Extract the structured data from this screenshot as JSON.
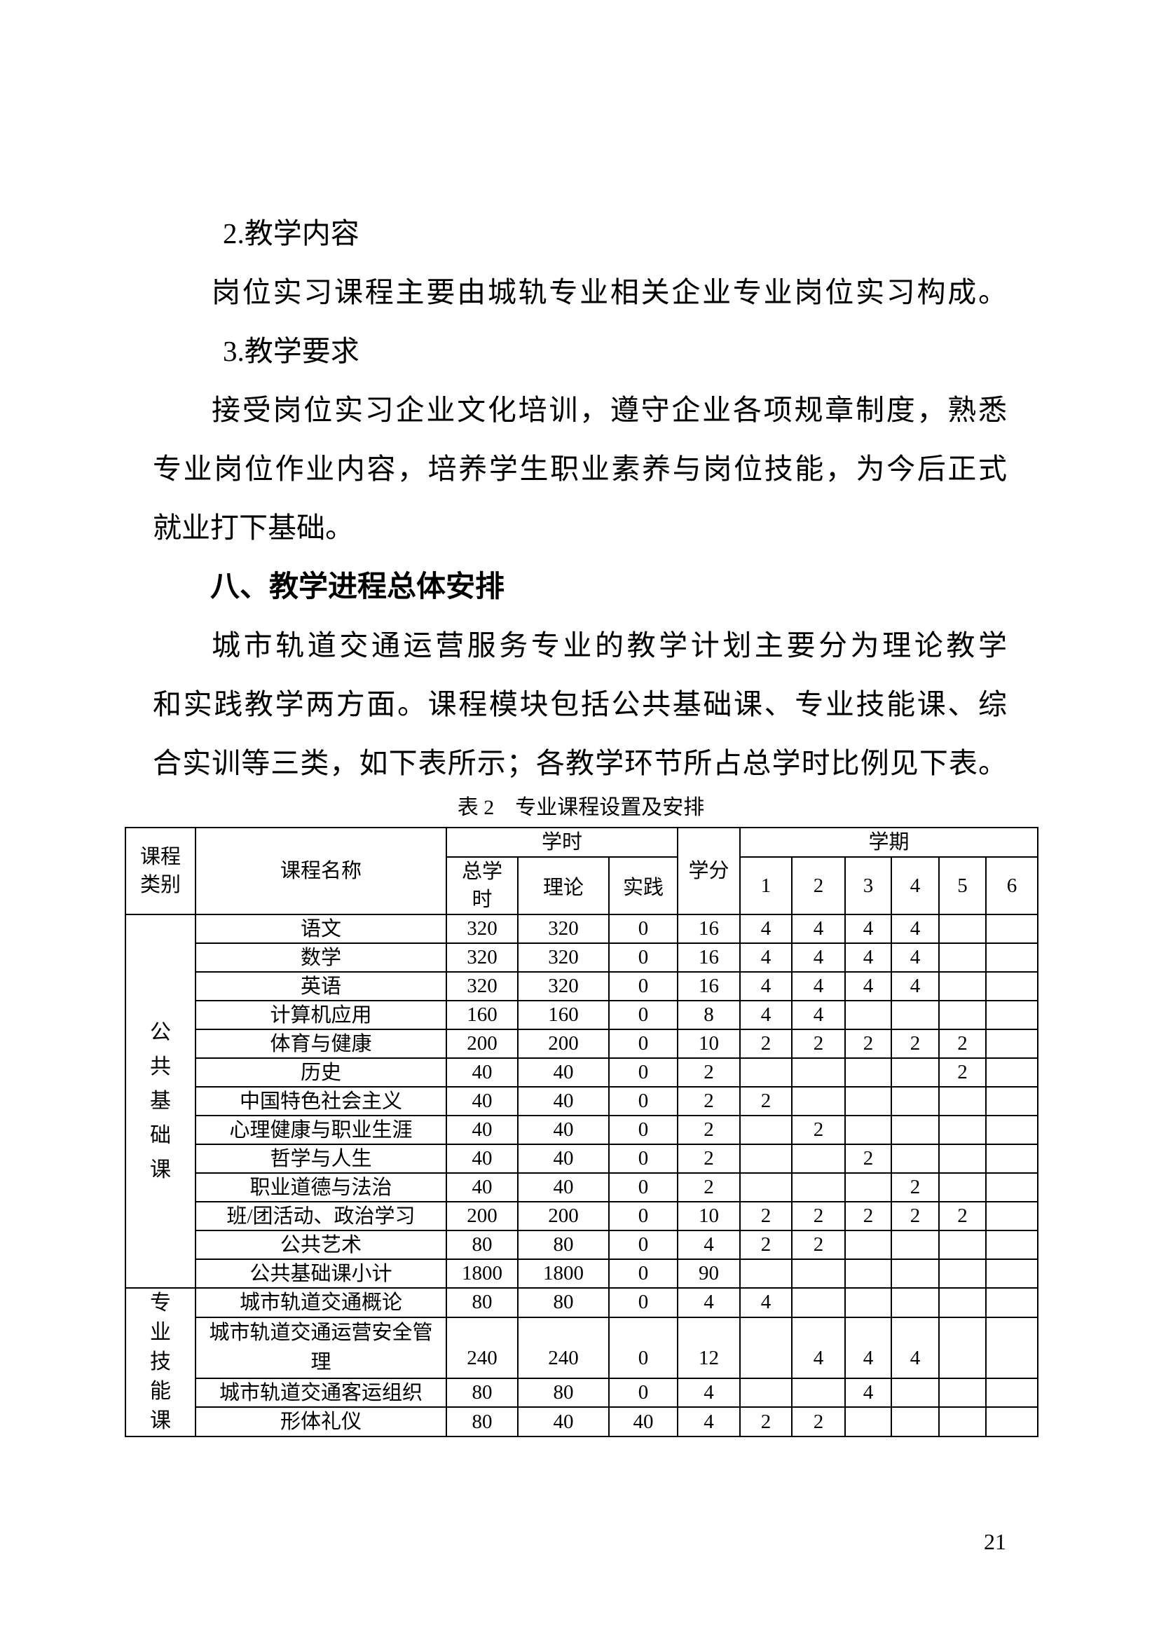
{
  "content": {
    "lines": [
      {
        "text": "2.教学内容"
      },
      {
        "text": "岗位实习课程主要由城轨专业相关企业专业岗位实习构成。"
      },
      {
        "text": "3.教学要求"
      },
      {
        "text": "接受岗位实习企业文化培训，遵守企业各项规章制度，熟悉"
      },
      {
        "text": "专业岗位作业内容，培养学生职业素养与岗位技能，为今后正式"
      },
      {
        "text": "就业打下基础。"
      },
      {
        "text": "八、教学进程总体安排"
      },
      {
        "text": "城市轨道交通运营服务专业的教学计划主要分为理论教学"
      },
      {
        "text": "和实践教学两方面。课程模块包括公共基础课、专业技能课、综"
      },
      {
        "text": "合实训等三类，如下表所示；各教学环节所占总学时比例见下表。"
      }
    ]
  },
  "table": {
    "caption": "表 2　专业课程设置及安排",
    "headers": {
      "category": "课程类别",
      "course_name": "课程名称",
      "hours_group": "学时",
      "total_hours": "总学时",
      "theory": "理论",
      "practice": "实践",
      "credits": "学分",
      "semester_group": "学期",
      "semesters": [
        "1",
        "2",
        "3",
        "4",
        "5",
        "6"
      ]
    },
    "categories": [
      {
        "label": "公共基础课",
        "rowspan": 13,
        "continues": false
      },
      {
        "label": "专业技能课",
        "rowspan": 4,
        "continues": true
      }
    ],
    "rows": [
      {
        "name": "语文",
        "total": "320",
        "theory": "320",
        "practice": "0",
        "credits": "16",
        "semesters": [
          "4",
          "4",
          "4",
          "4",
          "",
          ""
        ]
      },
      {
        "name": "数学",
        "total": "320",
        "theory": "320",
        "practice": "0",
        "credits": "16",
        "semesters": [
          "4",
          "4",
          "4",
          "4",
          "",
          ""
        ]
      },
      {
        "name": "英语",
        "total": "320",
        "theory": "320",
        "practice": "0",
        "credits": "16",
        "semesters": [
          "4",
          "4",
          "4",
          "4",
          "",
          ""
        ]
      },
      {
        "name": "计算机应用",
        "total": "160",
        "theory": "160",
        "practice": "0",
        "credits": "8",
        "semesters": [
          "4",
          "4",
          "",
          "",
          "",
          ""
        ]
      },
      {
        "name": "体育与健康",
        "total": "200",
        "theory": "200",
        "practice": "0",
        "credits": "10",
        "semesters": [
          "2",
          "2",
          "2",
          "2",
          "2",
          ""
        ]
      },
      {
        "name": "历史",
        "total": "40",
        "theory": "40",
        "practice": "0",
        "credits": "2",
        "semesters": [
          "",
          "",
          "",
          "",
          "2",
          ""
        ]
      },
      {
        "name": "中国特色社会主义",
        "total": "40",
        "theory": "40",
        "practice": "0",
        "credits": "2",
        "semesters": [
          "2",
          "",
          "",
          "",
          "",
          ""
        ]
      },
      {
        "name": "心理健康与职业生涯",
        "total": "40",
        "theory": "40",
        "practice": "0",
        "credits": "2",
        "semesters": [
          "",
          "2",
          "",
          "",
          "",
          ""
        ]
      },
      {
        "name": "哲学与人生",
        "total": "40",
        "theory": "40",
        "practice": "0",
        "credits": "2",
        "semesters": [
          "",
          "",
          "2",
          "",
          "",
          ""
        ]
      },
      {
        "name": "职业道德与法治",
        "total": "40",
        "theory": "40",
        "practice": "0",
        "credits": "2",
        "semesters": [
          "",
          "",
          "",
          "2",
          "",
          ""
        ]
      },
      {
        "name": "班/团活动、政治学习",
        "total": "200",
        "theory": "200",
        "practice": "0",
        "credits": "10",
        "semesters": [
          "2",
          "2",
          "2",
          "2",
          "2",
          ""
        ]
      },
      {
        "name": "公共艺术",
        "total": "80",
        "theory": "80",
        "practice": "0",
        "credits": "4",
        "semesters": [
          "2",
          "2",
          "",
          "",
          "",
          ""
        ]
      },
      {
        "name": "公共基础课小计",
        "total": "1800",
        "theory": "1800",
        "practice": "0",
        "credits": "90",
        "semesters": [
          "",
          "",
          "",
          "",
          "",
          ""
        ]
      },
      {
        "name": "城市轨道交通概论",
        "total": "80",
        "theory": "80",
        "practice": "0",
        "credits": "4",
        "semesters": [
          "4",
          "",
          "",
          "",
          "",
          ""
        ]
      },
      {
        "name": "城市轨道交通运营安全管理",
        "total": "240",
        "theory": "240",
        "practice": "0",
        "credits": "12",
        "semesters": [
          "",
          "4",
          "4",
          "4",
          "",
          ""
        ],
        "tall": true
      },
      {
        "name": "城市轨道交通客运组织",
        "total": "80",
        "theory": "80",
        "practice": "0",
        "credits": "4",
        "semesters": [
          "",
          "",
          "4",
          "",
          "",
          ""
        ]
      },
      {
        "name": "形体礼仪",
        "total": "80",
        "theory": "40",
        "practice": "40",
        "credits": "4",
        "semesters": [
          "2",
          "2",
          "",
          "",
          "",
          ""
        ]
      }
    ]
  },
  "page_number": "21"
}
